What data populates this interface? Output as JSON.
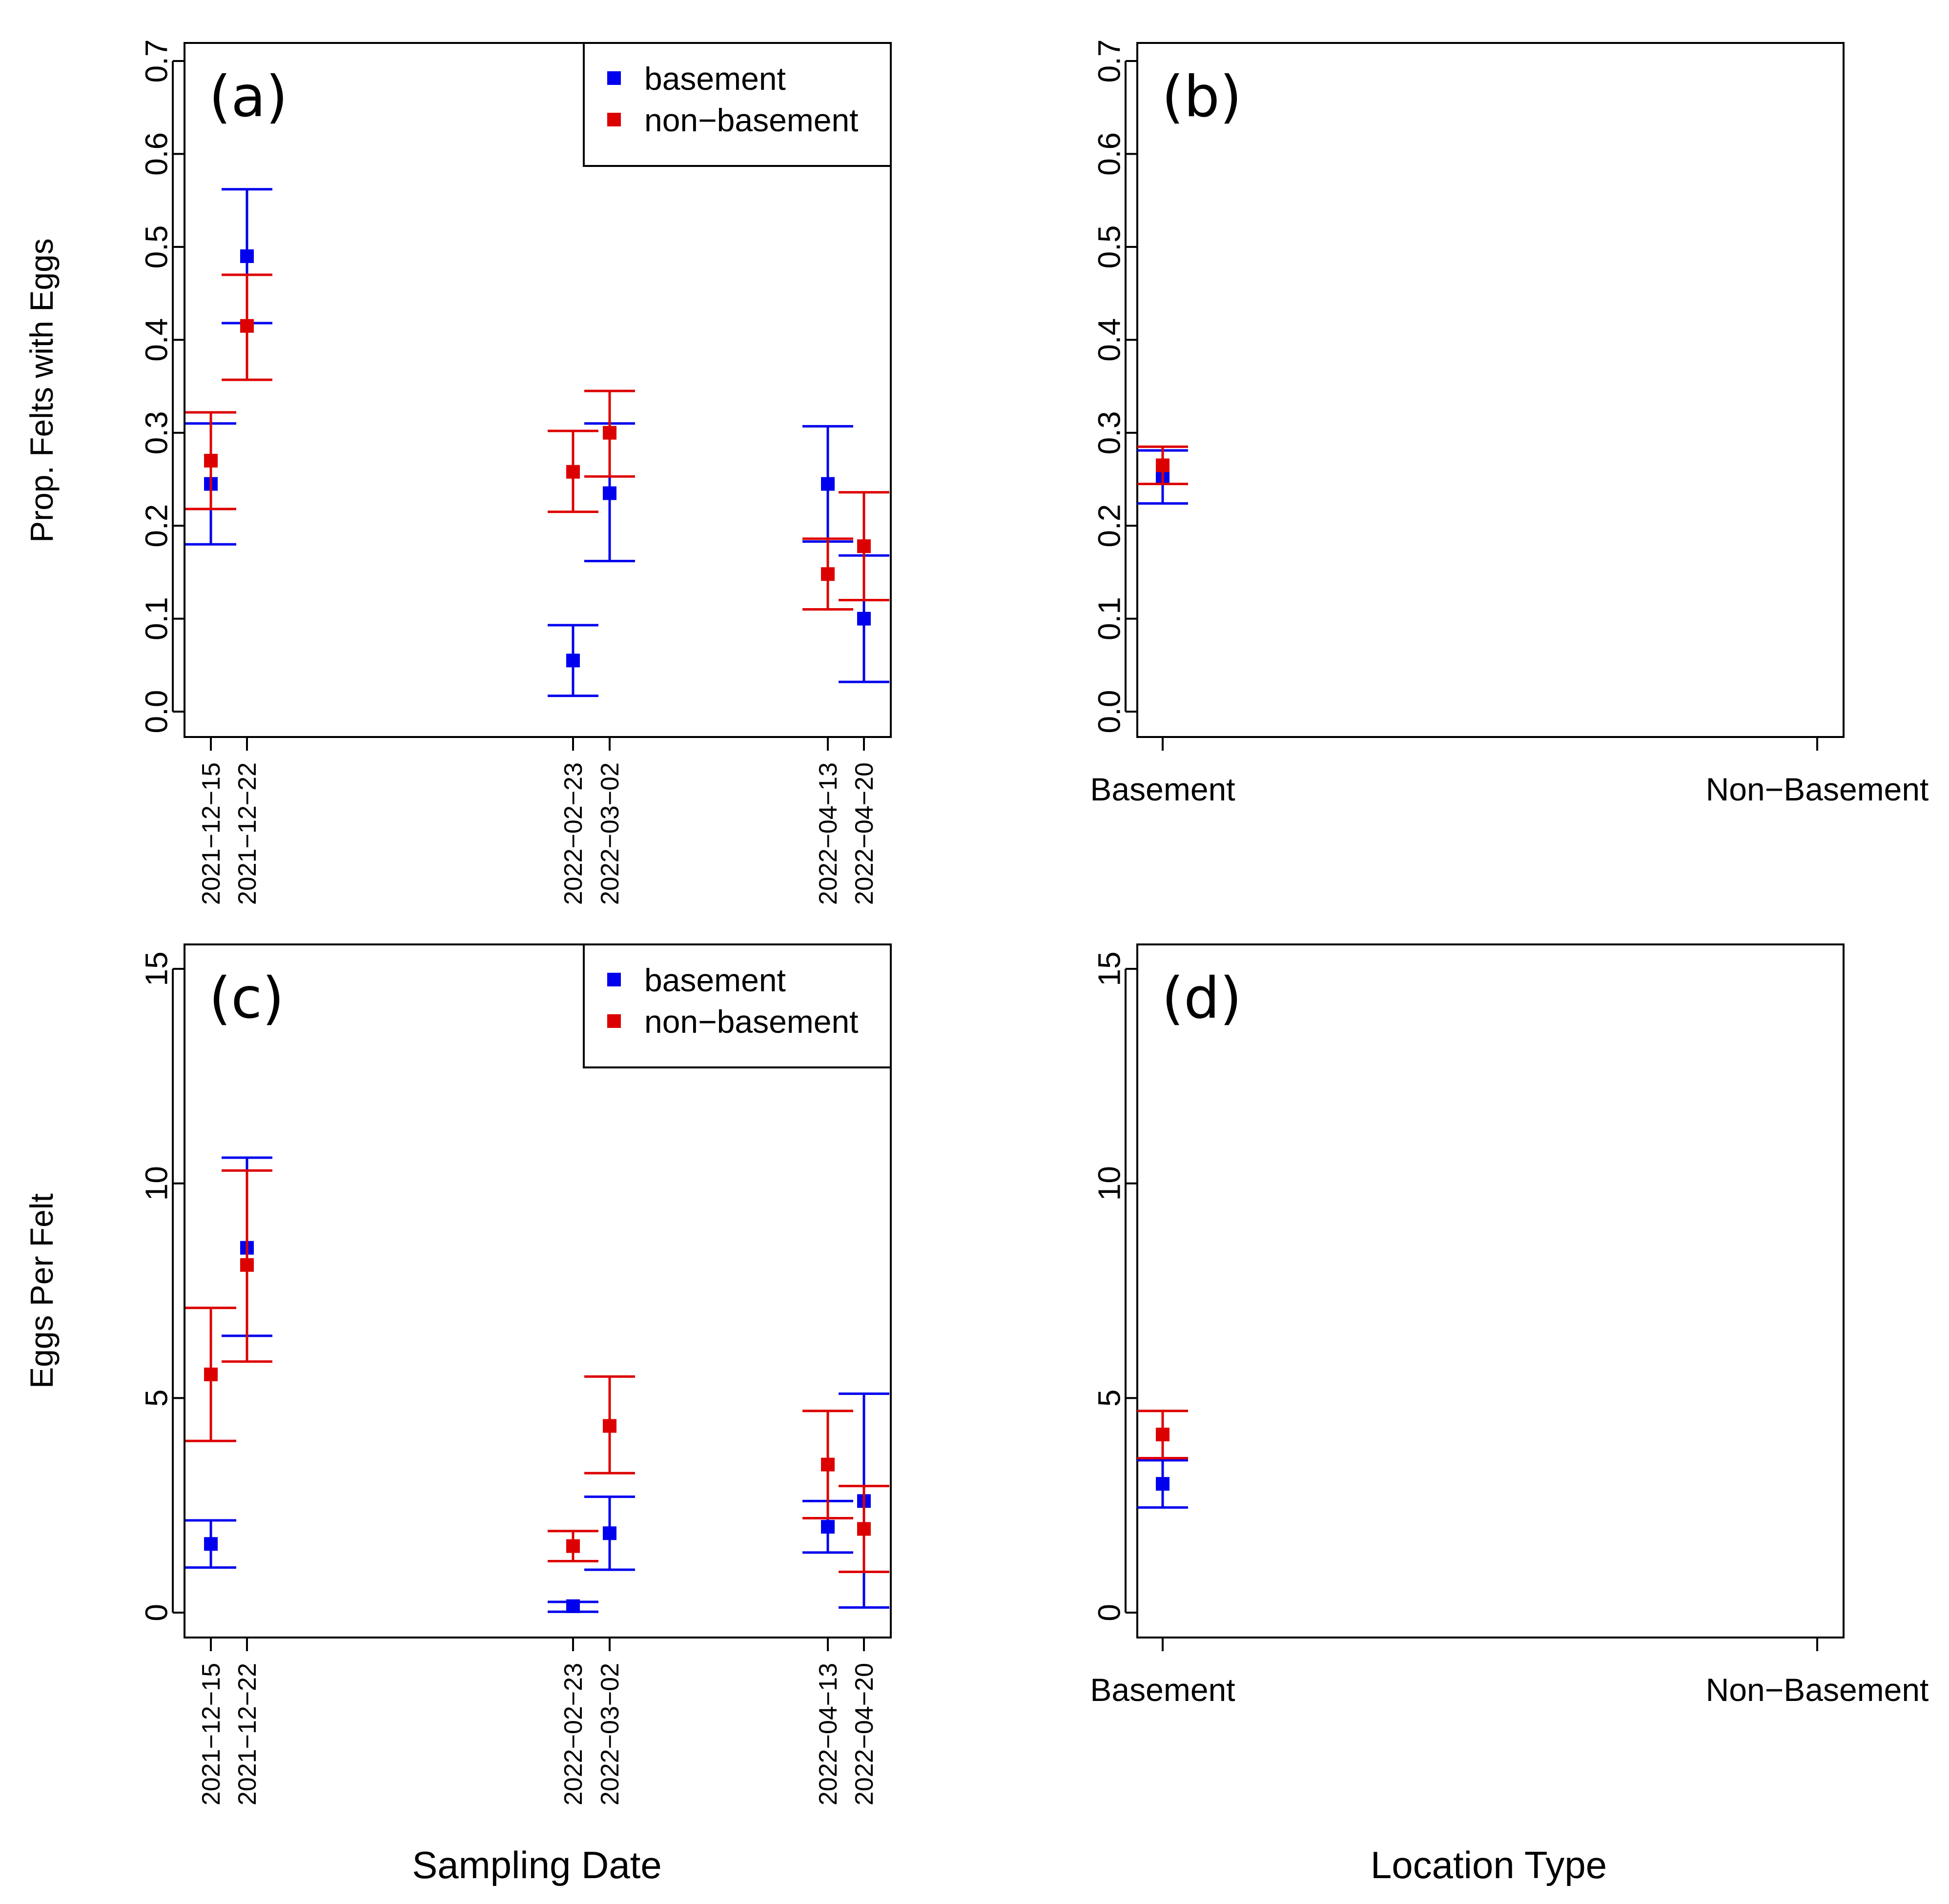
{
  "colors": {
    "basement": "#0000ee",
    "non_basement": "#dd0000"
  },
  "legend": {
    "basement": "basement",
    "non_basement": "non−basement"
  },
  "labels": {
    "ylabel_top": "Prop. Felts with Eggs",
    "ylabel_bottom": "Eggs Per Felt",
    "xlabel_left": "Sampling Date",
    "xlabel_right": "Location Type"
  },
  "chart_data": [
    {
      "panel": "(a)",
      "type": "scatter",
      "xlabel": "Sampling Date",
      "ylabel": "Prop. Felts with Eggs",
      "ylim": [
        0,
        0.7
      ],
      "yticks": [
        "0.0",
        "0.1",
        "0.2",
        "0.3",
        "0.4",
        "0.5",
        "0.6",
        "0.7"
      ],
      "x_categories": [
        "2021−12−15",
        "2021−12−22",
        "2022−02−23",
        "2022−03−02",
        "2022−04−13",
        "2022−04−20"
      ],
      "legend": [
        "basement",
        "non−basement"
      ],
      "series": [
        {
          "name": "basement",
          "values": [
            0.245,
            0.49,
            0.055,
            0.235,
            0.245,
            0.1
          ],
          "lower": [
            0.18,
            0.418,
            0.017,
            0.162,
            0.183,
            0.032
          ],
          "upper": [
            0.31,
            0.562,
            0.093,
            0.31,
            0.307,
            0.168
          ]
        },
        {
          "name": "non−basement",
          "values": [
            0.27,
            0.415,
            0.258,
            0.3,
            0.148,
            0.178
          ],
          "lower": [
            0.218,
            0.357,
            0.215,
            0.253,
            0.11,
            0.12
          ],
          "upper": [
            0.322,
            0.47,
            0.302,
            0.345,
            0.186,
            0.236
          ]
        }
      ]
    },
    {
      "panel": "(b)",
      "type": "scatter",
      "xlabel": "Location Type",
      "ylabel": "",
      "ylim": [
        0,
        0.7
      ],
      "yticks": [
        "0.0",
        "0.1",
        "0.2",
        "0.3",
        "0.4",
        "0.5",
        "0.6",
        "0.7"
      ],
      "x_categories": [
        "Basement",
        "Non−Basement"
      ],
      "series": [
        {
          "name": "basement",
          "values": [
            0.253
          ],
          "lower": [
            0.224
          ],
          "upper": [
            0.281
          ]
        },
        {
          "name": "non−basement",
          "values": [
            0.265
          ],
          "lower": [
            0.245
          ],
          "upper": [
            0.285
          ]
        }
      ]
    },
    {
      "panel": "(c)",
      "type": "scatter",
      "xlabel": "Sampling Date",
      "ylabel": "Eggs Per Felt",
      "ylim": [
        0,
        15
      ],
      "yticks": [
        "0",
        "5",
        "10",
        "15"
      ],
      "x_categories": [
        "2021−12−15",
        "2021−12−22",
        "2022−02−23",
        "2022−03−02",
        "2022−04−13",
        "2022−04−20"
      ],
      "legend": [
        "basement",
        "non−basement"
      ],
      "series": [
        {
          "name": "basement",
          "values": [
            1.6,
            8.5,
            0.15,
            1.85,
            2.0,
            2.6
          ],
          "lower": [
            1.05,
            6.45,
            0.02,
            1.0,
            1.4,
            0.12
          ],
          "upper": [
            2.15,
            10.6,
            0.25,
            2.7,
            2.6,
            5.1
          ]
        },
        {
          "name": "non−basement",
          "values": [
            5.55,
            8.1,
            1.55,
            4.35,
            3.45,
            1.95
          ],
          "lower": [
            4.0,
            5.85,
            1.2,
            3.25,
            2.2,
            0.95
          ],
          "upper": [
            7.1,
            10.3,
            1.9,
            5.5,
            4.7,
            2.95
          ]
        }
      ]
    },
    {
      "panel": "(d)",
      "type": "scatter",
      "xlabel": "Location Type",
      "ylabel": "",
      "ylim": [
        0,
        15
      ],
      "yticks": [
        "0",
        "5",
        "10",
        "15"
      ],
      "x_categories": [
        "Basement",
        "Non−Basement"
      ],
      "series": [
        {
          "name": "basement",
          "values": [
            3.0
          ],
          "lower": [
            2.45
          ],
          "upper": [
            3.55
          ]
        },
        {
          "name": "non−basement",
          "values": [
            4.15
          ],
          "lower": [
            3.6
          ],
          "upper": [
            4.7
          ]
        }
      ]
    }
  ]
}
